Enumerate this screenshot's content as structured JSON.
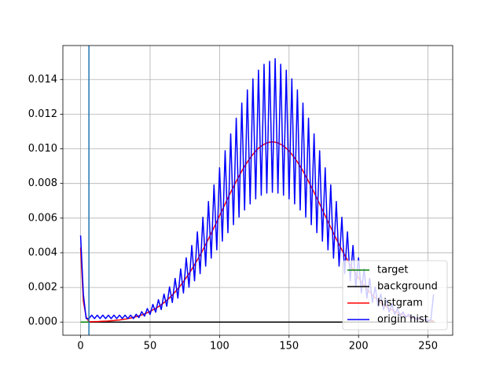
{
  "chart_data": {
    "type": "line",
    "x": [
      0,
      2,
      4,
      6,
      8,
      10,
      12,
      14,
      16,
      18,
      20,
      22,
      24,
      26,
      28,
      30,
      32,
      34,
      36,
      38,
      40,
      42,
      44,
      46,
      48,
      50,
      52,
      54,
      56,
      58,
      60,
      62,
      64,
      66,
      68,
      70,
      72,
      74,
      76,
      78,
      80,
      82,
      84,
      86,
      88,
      90,
      92,
      94,
      96,
      98,
      100,
      102,
      104,
      106,
      108,
      110,
      112,
      114,
      116,
      118,
      120,
      122,
      124,
      126,
      128,
      130,
      132,
      134,
      136,
      138,
      140,
      142,
      144,
      146,
      148,
      150,
      152,
      154,
      156,
      158,
      160,
      162,
      164,
      166,
      168,
      170,
      172,
      174,
      176,
      178,
      180,
      182,
      184,
      186,
      188,
      190,
      192,
      194,
      196,
      198,
      200,
      202,
      204,
      206,
      208,
      210,
      212,
      214,
      216,
      218,
      220,
      222,
      224,
      226,
      228,
      230,
      232,
      234,
      236,
      238,
      240,
      242,
      244,
      246,
      248,
      250,
      252,
      254
    ],
    "series": [
      {
        "name": "target",
        "color": "#008000",
        "x": [
          0,
          6
        ],
        "values": [
          0,
          0
        ]
      },
      {
        "name": "background",
        "color": "#000000",
        "x": [
          6,
          255
        ],
        "values": [
          0,
          0
        ]
      },
      {
        "name": "histgram",
        "color": "#ff0000",
        "values": [
          0.0043,
          0.0012,
          0.0003,
          2e-05,
          2e-05,
          3e-05,
          3e-05,
          4e-05,
          5e-05,
          5e-05,
          6e-05,
          8e-05,
          9e-05,
          0.00011,
          0.00012,
          0.00015,
          0.00017,
          0.0002,
          0.00023,
          0.00027,
          0.00031,
          0.00036,
          0.00041,
          0.00047,
          0.00054,
          0.00061,
          0.0007,
          0.00079,
          0.00089,
          0.001,
          0.00112,
          0.00126,
          0.0014,
          0.00157,
          0.00174,
          0.00192,
          0.00212,
          0.00233,
          0.00256,
          0.00279,
          0.00305,
          0.00331,
          0.00359,
          0.00387,
          0.00417,
          0.00448,
          0.0048,
          0.00513,
          0.00546,
          0.00579,
          0.00614,
          0.00648,
          0.00682,
          0.00716,
          0.00749,
          0.00781,
          0.00812,
          0.00842,
          0.00872,
          0.00899,
          0.00924,
          0.00947,
          0.00968,
          0.00987,
          0.01003,
          0.01016,
          0.01026,
          0.01034,
          0.01038,
          0.0104,
          0.01038,
          0.01034,
          0.01026,
          0.01016,
          0.01003,
          0.00987,
          0.00968,
          0.00947,
          0.00924,
          0.00899,
          0.00872,
          0.00842,
          0.00812,
          0.00781,
          0.00749,
          0.00716,
          0.00682,
          0.00648,
          0.00614,
          0.00579,
          0.00546,
          0.00513,
          0.0048,
          0.00448,
          0.00417,
          0.00387,
          0.00359,
          0.00331,
          0.00305,
          0.00279,
          0.00256,
          0.00233,
          0.00212,
          0.00192,
          0.00174,
          0.00157,
          0.0014,
          0.00126,
          0.00112,
          0.001,
          0.00089,
          0.00079,
          0.0007,
          0.00061,
          0.00054,
          0.00047,
          0.00041,
          0.00036,
          0.00031,
          0.00027,
          0.00023,
          0.0002,
          0.00017,
          0.00015,
          0.00012,
          0.00011,
          9e-05,
          8e-05
        ]
      },
      {
        "name": "origin hist",
        "color": "#0000ff",
        "values": [
          0.005,
          0.0016,
          0.0002,
          0.0002,
          0.0004,
          0.0002,
          0.0004,
          0.0002,
          0.0004,
          0.0002,
          0.0004,
          0.0002,
          0.0004,
          0.0002,
          0.0004,
          0.0002,
          0.0004,
          0.0002,
          0.0004,
          0.0002,
          0.00045,
          0.00026,
          0.0006,
          0.00034,
          0.00078,
          0.00044,
          0.00102,
          0.00057,
          0.00129,
          0.00072,
          0.00162,
          0.00091,
          0.00203,
          0.00113,
          0.00252,
          0.00138,
          0.00307,
          0.00168,
          0.00371,
          0.00201,
          0.00442,
          0.00238,
          0.00521,
          0.00279,
          0.00605,
          0.00323,
          0.00696,
          0.00369,
          0.00792,
          0.00417,
          0.0089,
          0.00467,
          0.00989,
          0.00516,
          0.01086,
          0.00562,
          0.01177,
          0.00606,
          0.01264,
          0.00647,
          0.0134,
          0.00682,
          0.01404,
          0.00711,
          0.01454,
          0.00732,
          0.01488,
          0.00744,
          0.01505,
          0.00749,
          0.0152,
          0.00744,
          0.01488,
          0.00732,
          0.01454,
          0.00711,
          0.01404,
          0.00682,
          0.0134,
          0.00647,
          0.01264,
          0.00606,
          0.01177,
          0.00562,
          0.01086,
          0.00516,
          0.00989,
          0.00467,
          0.0089,
          0.00417,
          0.00792,
          0.00369,
          0.00696,
          0.00323,
          0.00605,
          0.00279,
          0.00521,
          0.00238,
          0.00442,
          0.00201,
          0.00371,
          0.00168,
          0.00307,
          0.00138,
          0.00252,
          0.00113,
          0.00203,
          0.00091,
          0.00162,
          0.00072,
          0.00129,
          0.00057,
          0.00102,
          0.00044,
          0.00078,
          0.00034,
          0.00059,
          0.00026,
          0.00045,
          0.00019,
          0.00033,
          0.00014,
          0.00025,
          0.00011,
          0.00017,
          8e-05,
          0.00013,
          0.0016
        ]
      }
    ],
    "vline": {
      "x": 6,
      "color": "#1f77b4"
    },
    "xlim": [
      -12.75,
      267.75
    ],
    "xticks": [
      0,
      50,
      100,
      150,
      200,
      250
    ],
    "ylim": [
      -0.00076,
      0.01596
    ],
    "yticks": [
      {
        "value": 0,
        "label": "0.000"
      },
      0.002,
      0.004,
      0.006,
      0.008,
      {
        "value": 0.01,
        "label": "0.010"
      },
      0.012,
      0.014
    ],
    "grid": true,
    "legend": "lower right"
  }
}
